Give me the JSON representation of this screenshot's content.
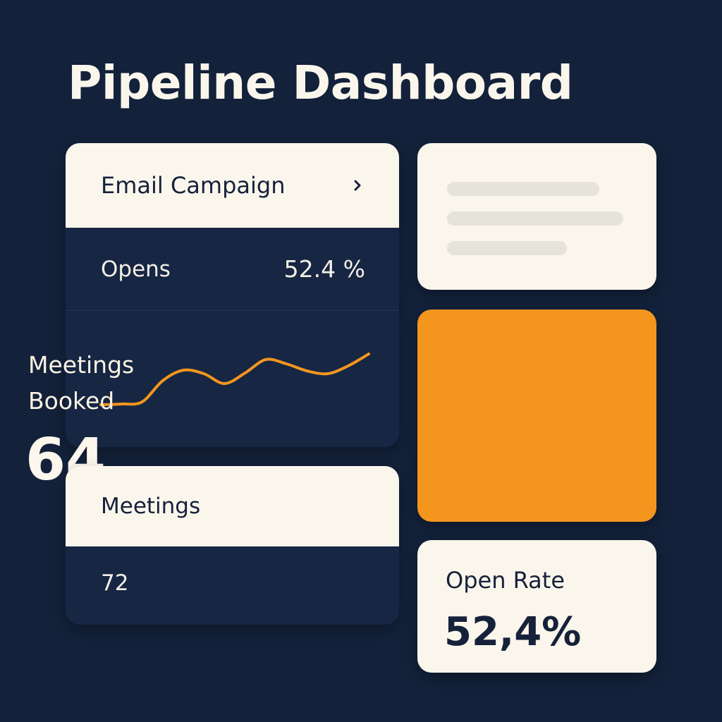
{
  "header": {
    "title": "Pipeline Dashboard"
  },
  "email_campaign": {
    "title": "Email Campaign",
    "chevron_icon": "chevron-right-icon",
    "opens_label": "Opens",
    "opens_value": "52.4 %",
    "sparkline_color": "#f4961e",
    "sparkline": [
      0.08,
      0.09,
      0.12,
      0.42,
      0.57,
      0.52,
      0.38,
      0.53,
      0.72,
      0.66,
      0.56,
      0.52,
      0.63,
      0.8
    ]
  },
  "meetings_booked": {
    "label": "Meetings Booked",
    "value": "64"
  },
  "meetings": {
    "title": "Meetings",
    "value": "72"
  },
  "open_rate": {
    "label": "Open Rate",
    "value": "52,4%"
  },
  "colors": {
    "background": "#13213a",
    "card_light": "#fbf6ec",
    "card_dark": "#162643",
    "accent": "#f4961e",
    "text_dark": "#16213a"
  }
}
